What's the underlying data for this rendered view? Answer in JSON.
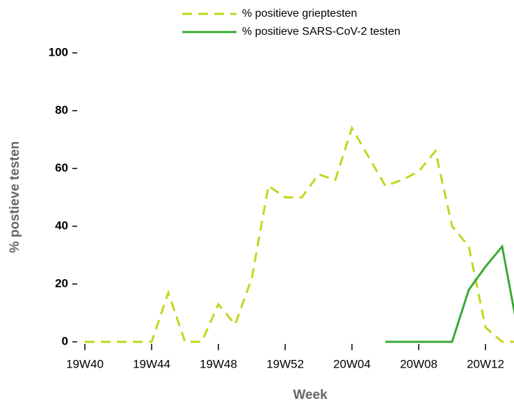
{
  "chart_data": {
    "type": "line",
    "x_label": "Week",
    "y_label": "% postieve testen",
    "categories": [
      "19W40",
      null,
      null,
      null,
      "19W44",
      null,
      null,
      null,
      "19W48",
      null,
      null,
      null,
      "19W52",
      null,
      null,
      null,
      "20W04",
      null,
      null,
      null,
      "20W08",
      null,
      null,
      null,
      "20W12",
      null,
      null
    ],
    "series": [
      {
        "name": "% positieve grieptesten",
        "color": "#c5d41e",
        "dashed": true,
        "values": [
          0,
          0,
          0,
          0,
          0,
          17,
          0,
          0,
          13,
          6,
          22,
          54,
          50,
          50,
          58,
          56,
          74,
          64,
          54,
          56,
          59,
          66,
          40,
          33,
          5,
          0,
          0
        ]
      },
      {
        "name": "% positieve SARS-CoV-2 testen",
        "color": "#3aa935",
        "dashed": false,
        "values": [
          null,
          null,
          null,
          null,
          null,
          null,
          null,
          null,
          null,
          null,
          null,
          null,
          null,
          null,
          null,
          null,
          null,
          null,
          0,
          0,
          0,
          0,
          0,
          18,
          26,
          33,
          2
        ]
      }
    ],
    "ylim": [
      0,
      100
    ],
    "yticks": [
      0,
      20,
      40,
      60,
      80,
      100
    ]
  }
}
